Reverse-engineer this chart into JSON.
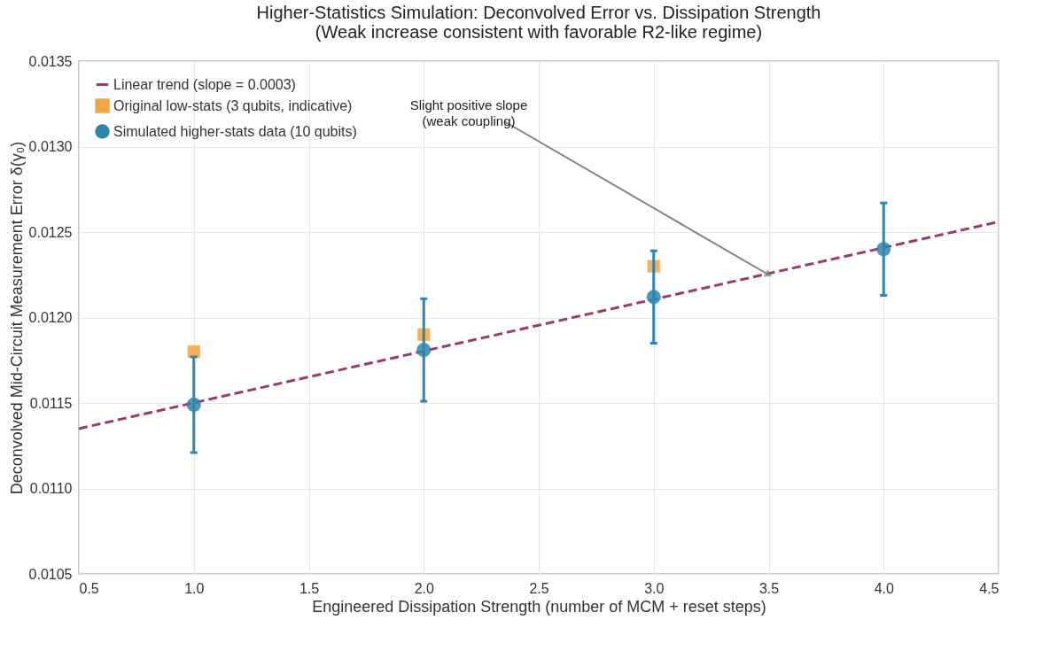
{
  "chart_data": {
    "type": "scatter",
    "title": "Higher-Statistics Simulation: Deconvolved Error vs. Dissipation Strength",
    "subtitle": "(Weak increase consistent with favorable R2-like regime)",
    "xlabel": "Engineered Dissipation Strength (number of MCM + reset steps)",
    "ylabel": "Deconvolved Mid-Circuit Measurement Error δ(γ₀)",
    "xlim": [
      0.5,
      4.5
    ],
    "ylim": [
      0.0105,
      0.0135
    ],
    "xticks": [
      0.5,
      {
        "value": 1,
        "label": "1.0"
      },
      1.5,
      {
        "value": 2,
        "label": "2.0"
      },
      2.5,
      {
        "value": 3,
        "label": "3.0"
      },
      3.5,
      {
        "value": 4,
        "label": "4.0"
      },
      4.5
    ],
    "yticks": [
      0.0105,
      {
        "value": 0.011,
        "label": "0.0110"
      },
      0.0115,
      {
        "value": 0.012,
        "label": "0.0120"
      },
      0.0125,
      {
        "value": 0.013,
        "label": "0.0130"
      },
      0.0135
    ],
    "grid": true,
    "legend": "top left",
    "series": [
      {
        "name": "Linear trend (slope = 0.0003)",
        "type": "line",
        "line_style": "dashed",
        "marker": "none",
        "color": "#9b3a6e",
        "x": [
          0.5,
          4.5
        ],
        "values": [
          0.01135,
          0.01256
        ]
      },
      {
        "name": "Original low-stats (3 qubits, indicative)",
        "type": "scatter",
        "marker": "square",
        "color": "#f2a541",
        "x": [
          1,
          2,
          3
        ],
        "values": [
          0.0118,
          0.0119,
          0.0123
        ]
      },
      {
        "name": "Simulated higher-stats data (10 qubits)",
        "type": "scatter",
        "marker": "circle",
        "color": "#2e86ab",
        "x": [
          1,
          2,
          3,
          4
        ],
        "values": [
          0.01149,
          0.01181,
          0.01212,
          0.0124
        ],
        "errors": [
          0.00028,
          0.0003,
          0.00027,
          0.00027
        ]
      }
    ],
    "annotations": [
      {
        "text": "Slight positive slope\n(weak coupling)",
        "x": 3.5,
        "y": 0.01225
      }
    ]
  }
}
